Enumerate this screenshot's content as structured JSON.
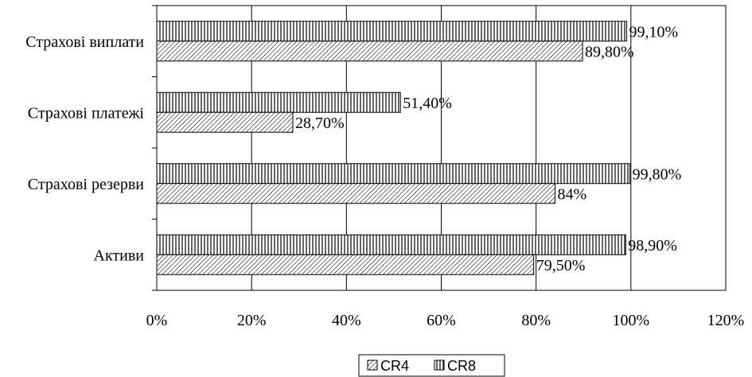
{
  "chart_data": {
    "type": "bar",
    "orientation": "horizontal",
    "categories": [
      "Страхові виплати",
      "Страхові платежі",
      "Страхові резерви",
      "Активи"
    ],
    "series": [
      {
        "name": "CR8",
        "values": [
          99.1,
          51.4,
          99.8,
          98.9
        ],
        "labels": [
          "99,10%",
          "51,40%",
          "99,80%",
          "98,90%"
        ],
        "pattern": "vertical-lines"
      },
      {
        "name": "CR4",
        "values": [
          89.8,
          28.7,
          84,
          79.5
        ],
        "labels": [
          "89,80%",
          "28,70%",
          "84%",
          "79,50%"
        ],
        "pattern": "diagonal-lines"
      }
    ],
    "xlim": [
      0,
      120
    ],
    "x_ticks": [
      "0%",
      "20%",
      "40%",
      "60%",
      "80%",
      "100%",
      "120%"
    ],
    "grid": true,
    "legend": {
      "position": "bottom",
      "entries": [
        "CR4",
        "CR8"
      ]
    }
  }
}
